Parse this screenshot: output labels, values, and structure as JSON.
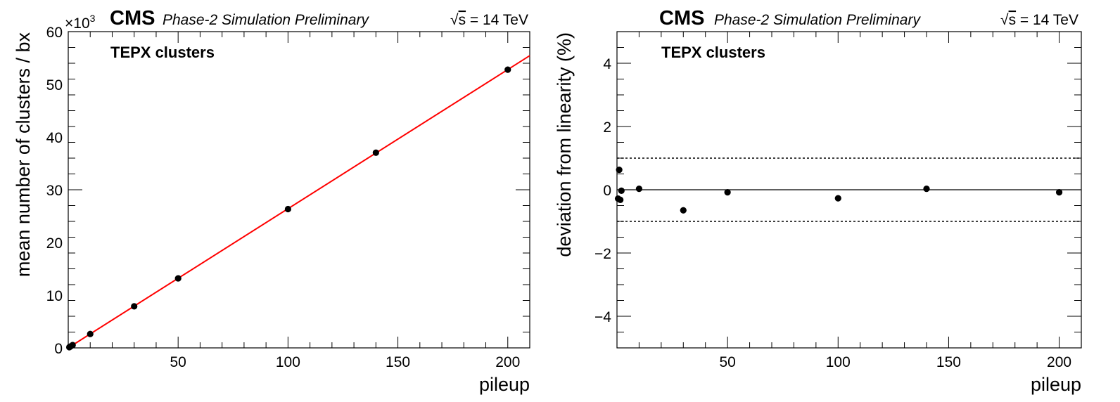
{
  "header": {
    "experiment": "CMS",
    "status": "Phase-2 Simulation Preliminary",
    "energy_sqrt": "s",
    "energy_rest": " = 14 TeV"
  },
  "colors": {
    "points": "#000000",
    "fit_line": "#ff0000",
    "axes": "#000000",
    "background": "#ffffff"
  },
  "chart_data": [
    {
      "type": "scatter",
      "annotation": "TEPX clusters",
      "xlabel": "pileup",
      "ylabel": "mean number of clusters / bx",
      "y_multiplier": "×10",
      "y_multiplier_exp": "3",
      "xlim": [
        0,
        210
      ],
      "ylim": [
        0,
        60
      ],
      "xticks": [
        50,
        100,
        150,
        200
      ],
      "yticks": [
        0,
        10,
        20,
        30,
        40,
        50,
        60
      ],
      "grid": false,
      "series": [
        {
          "marker": "circle",
          "color": "#000000",
          "x": [
            0.5,
            1,
            2,
            10,
            30,
            50,
            100,
            140,
            200
          ],
          "y": [
            0.13,
            0.27,
            0.53,
            2.64,
            7.88,
            13.19,
            26.33,
            37.03,
            52.78
          ]
        }
      ],
      "fit": {
        "type": "linear",
        "color": "#ff0000",
        "slope": 0.264,
        "intercept": 0.0,
        "x_range": [
          0,
          210
        ]
      }
    },
    {
      "type": "scatter",
      "annotation": "TEPX clusters",
      "xlabel": "pileup",
      "ylabel": "deviation from linearity (%)",
      "xlim": [
        0,
        210
      ],
      "ylim": [
        -5,
        5
      ],
      "xticks": [
        50,
        100,
        150,
        200
      ],
      "yticks": [
        -4,
        -2,
        0,
        2,
        4
      ],
      "grid": false,
      "reference_lines": [
        {
          "y": 0,
          "style": "solid"
        },
        {
          "y": 1,
          "style": "dotted"
        },
        {
          "y": -1,
          "style": "dotted"
        }
      ],
      "series": [
        {
          "marker": "circle",
          "color": "#000000",
          "x": [
            0.5,
            1,
            1.5,
            2,
            10,
            30,
            50,
            100,
            140,
            200
          ],
          "y": [
            -0.28,
            0.63,
            -0.32,
            -0.03,
            0.03,
            -0.65,
            -0.08,
            -0.27,
            0.03,
            -0.08
          ]
        }
      ]
    }
  ]
}
